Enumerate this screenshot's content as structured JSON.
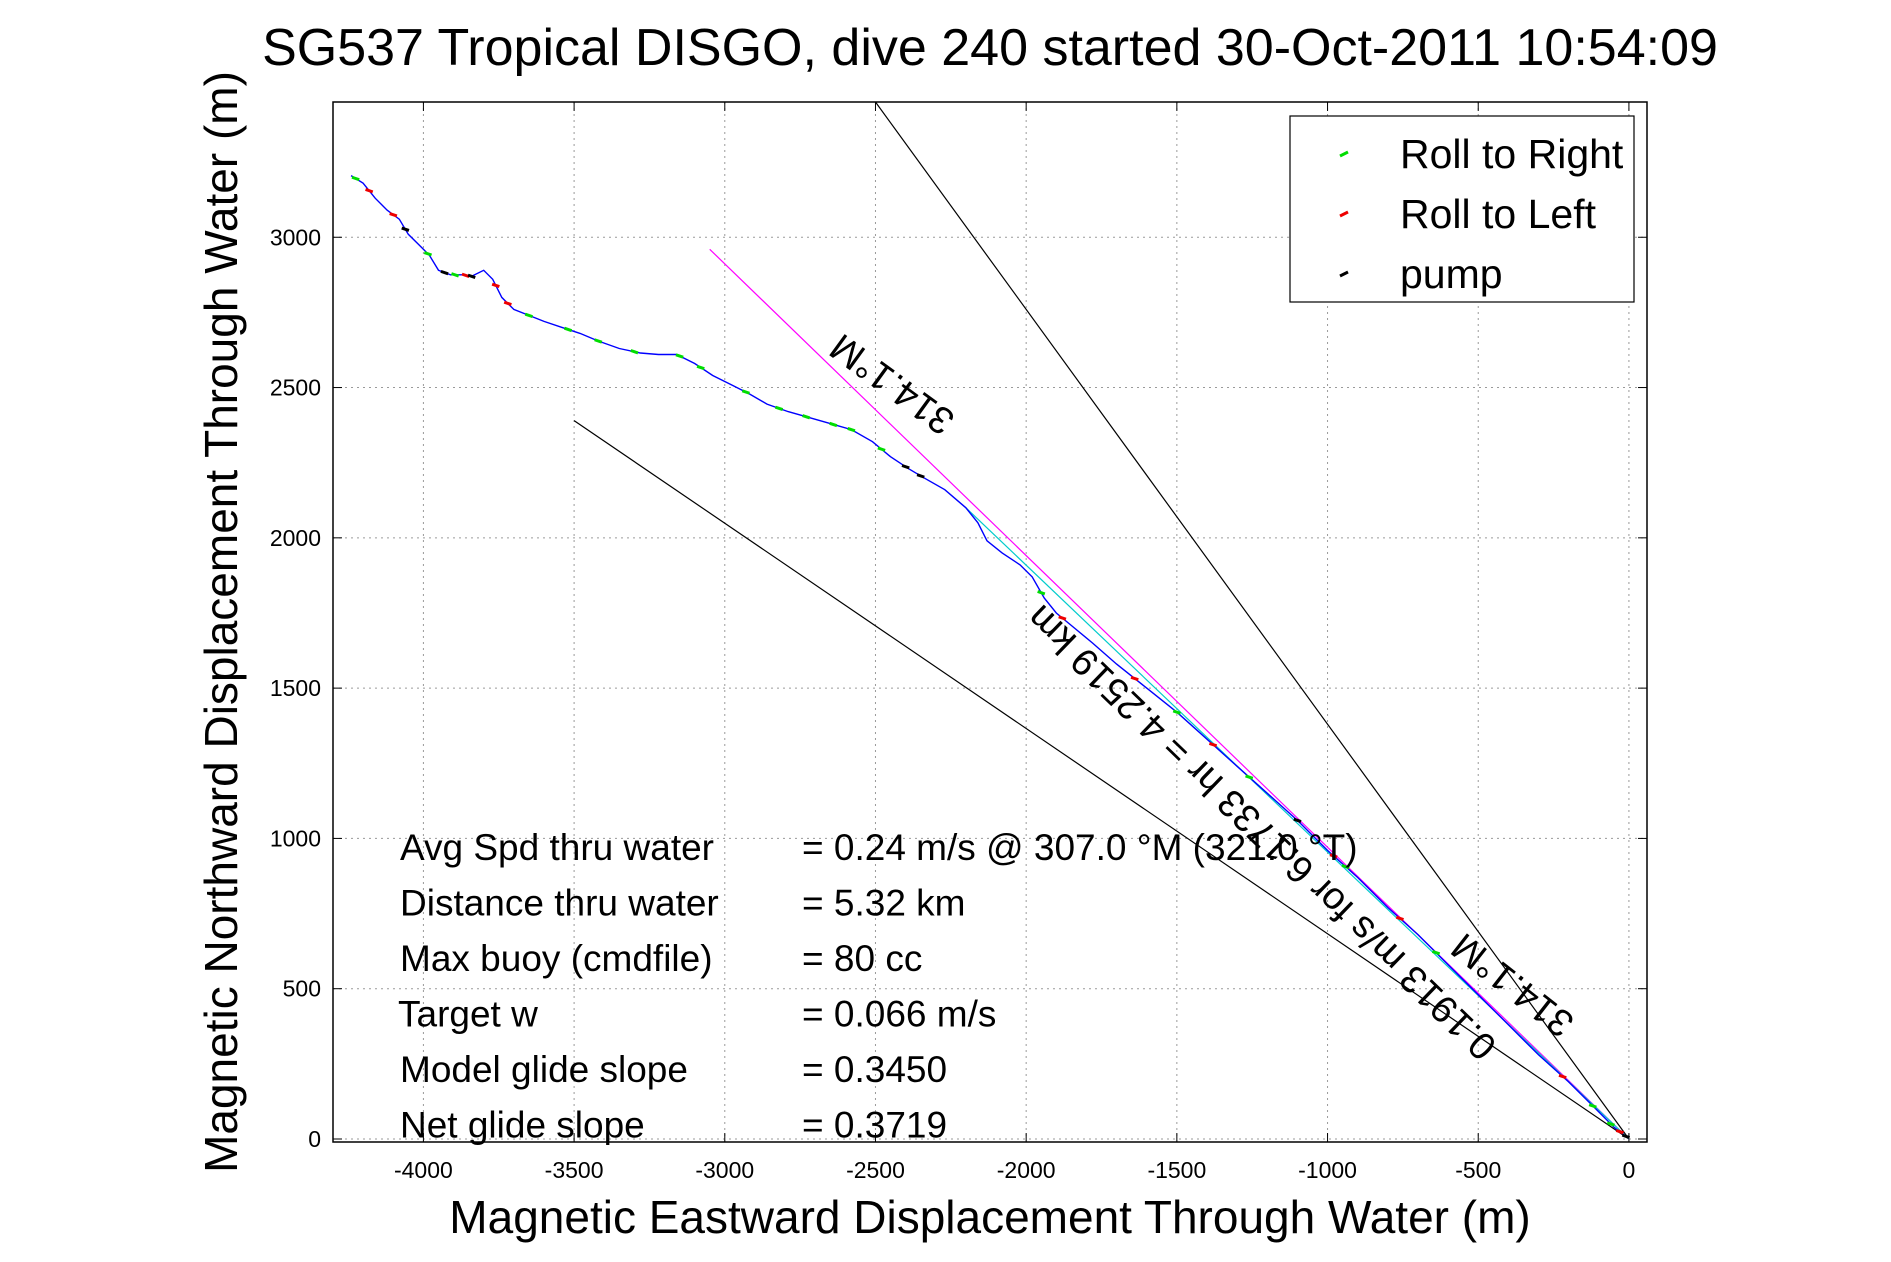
{
  "chart_data": {
    "type": "line",
    "title": "SG537 Tropical DISGO, dive 240 started 30-Oct-2011 10:54:09",
    "xlabel": "Magnetic Eastward Displacement Through Water (m)",
    "ylabel": "Magnetic Northward Displacement Through Water (m)",
    "xlim": [
      -4300,
      60
    ],
    "ylim": [
      -10,
      3450
    ],
    "xticks": [
      -4000,
      -3500,
      -3000,
      -2500,
      -2000,
      -1500,
      -1000,
      -500,
      0
    ],
    "yticks": [
      0,
      500,
      1000,
      1500,
      2000,
      2500,
      3000
    ],
    "grid": true,
    "legend_position": "top-right",
    "legend": [
      {
        "label": "Roll to Right",
        "color": "#00dd00"
      },
      {
        "label": "Roll to Left",
        "color": "#ee0000"
      },
      {
        "label": "pump",
        "color": "#000000"
      }
    ],
    "track": {
      "color": "#0000ff",
      "points": [
        [
          -4240,
          3205
        ],
        [
          -4200,
          3180
        ],
        [
          -4160,
          3130
        ],
        [
          -4120,
          3090
        ],
        [
          -4080,
          3060
        ],
        [
          -4050,
          3010
        ],
        [
          -4010,
          2970
        ],
        [
          -3980,
          2940
        ],
        [
          -3950,
          2890
        ],
        [
          -3910,
          2875
        ],
        [
          -3870,
          2875
        ],
        [
          -3840,
          2870
        ],
        [
          -3800,
          2890
        ],
        [
          -3770,
          2860
        ],
        [
          -3740,
          2800
        ],
        [
          -3700,
          2760
        ],
        [
          -3650,
          2740
        ],
        [
          -3600,
          2720
        ],
        [
          -3540,
          2700
        ],
        [
          -3480,
          2680
        ],
        [
          -3420,
          2655
        ],
        [
          -3350,
          2630
        ],
        [
          -3280,
          2615
        ],
        [
          -3220,
          2610
        ],
        [
          -3160,
          2610
        ],
        [
          -3100,
          2580
        ],
        [
          -3040,
          2540
        ],
        [
          -2980,
          2510
        ],
        [
          -2920,
          2480
        ],
        [
          -2860,
          2445
        ],
        [
          -2790,
          2420
        ],
        [
          -2720,
          2400
        ],
        [
          -2650,
          2380
        ],
        [
          -2580,
          2360
        ],
        [
          -2510,
          2320
        ],
        [
          -2450,
          2270
        ],
        [
          -2390,
          2230
        ],
        [
          -2340,
          2200
        ],
        [
          -2270,
          2160
        ],
        [
          -2200,
          2100
        ],
        [
          -2160,
          2050
        ],
        [
          -2130,
          1990
        ],
        [
          -2080,
          1950
        ],
        [
          -2020,
          1910
        ],
        [
          -1980,
          1870
        ],
        [
          -1940,
          1800
        ],
        [
          -1900,
          1750
        ],
        [
          -1840,
          1700
        ],
        [
          -1780,
          1650
        ],
        [
          -1700,
          1580
        ],
        [
          -1600,
          1500
        ],
        [
          -1500,
          1420
        ],
        [
          -1400,
          1330
        ],
        [
          -1300,
          1240
        ],
        [
          -1200,
          1150
        ],
        [
          -1100,
          1060
        ],
        [
          -1000,
          960
        ],
        [
          -900,
          870
        ],
        [
          -800,
          770
        ],
        [
          -700,
          680
        ],
        [
          -600,
          580
        ],
        [
          -500,
          480
        ],
        [
          -400,
          380
        ],
        [
          -300,
          280
        ],
        [
          -200,
          190
        ],
        [
          -120,
          110
        ],
        [
          -50,
          40
        ],
        [
          -5,
          5
        ]
      ]
    },
    "marker_sets": [
      {
        "name": "Roll to Right",
        "color": "#00dd00",
        "x": [
          -4225,
          -3985,
          -3895,
          -3650,
          -3520,
          -3420,
          -3300,
          -3150,
          -3080,
          -2930,
          -2820,
          -2730,
          -2640,
          -2580,
          -2480,
          -1950,
          -1500,
          -1260,
          -940,
          -640,
          -120,
          -60
        ]
      },
      {
        "name": "Roll to Left",
        "color": "#ee0000",
        "x": [
          -4180,
          -4100,
          -3860,
          -3760,
          -3720,
          -1880,
          -1640,
          -1380,
          -980,
          -760,
          -220,
          -30
        ]
      },
      {
        "name": "pump",
        "color": "#000000",
        "x": [
          -4060,
          -3930,
          -3840,
          -2400,
          -2350,
          -1100,
          -10
        ]
      }
    ],
    "reference_lines": [
      {
        "name": "heading-line",
        "color": "#000000",
        "points": [
          [
            -2500,
            3450
          ],
          [
            0,
            0
          ]
        ]
      },
      {
        "name": "heading-line",
        "color": "#000000",
        "points": [
          [
            -3500,
            2390
          ],
          [
            0,
            0
          ]
        ]
      },
      {
        "name": "course-line",
        "color": "#ff00ff",
        "points": [
          [
            -3050,
            2960
          ],
          [
            0,
            0
          ]
        ]
      },
      {
        "name": "track-line",
        "color": "#00cccc",
        "points": [
          [
            -2200,
            2100
          ],
          [
            0,
            0
          ]
        ]
      }
    ],
    "annotations": [
      {
        "text": "314.1°M",
        "at": [
          -2420,
          2545
        ],
        "rotation": 216
      },
      {
        "text": "0.1913 m/s for 6.1733 hr = 4.2519 km",
        "at": [
          -1190,
          1050
        ],
        "rotation": 224
      },
      {
        "text": "314.1°M",
        "at": [
          -360,
          545
        ],
        "rotation": 218
      }
    ],
    "stats": [
      {
        "label": "Avg Spd thru water",
        "value": "=  0.24 m/s @ 307.0  °M (321.0 °T)"
      },
      {
        "label": "Distance thru water",
        "value": "=  5.32 km"
      },
      {
        "label": "Max buoy (cmdfile)",
        "value": "= 80 cc"
      },
      {
        "label": "Target w",
        "value": "= 0.066 m/s"
      },
      {
        "label": "Model glide slope",
        "value": "= 0.3450"
      },
      {
        "label": "Net glide slope",
        "value": "= 0.3719"
      }
    ]
  }
}
